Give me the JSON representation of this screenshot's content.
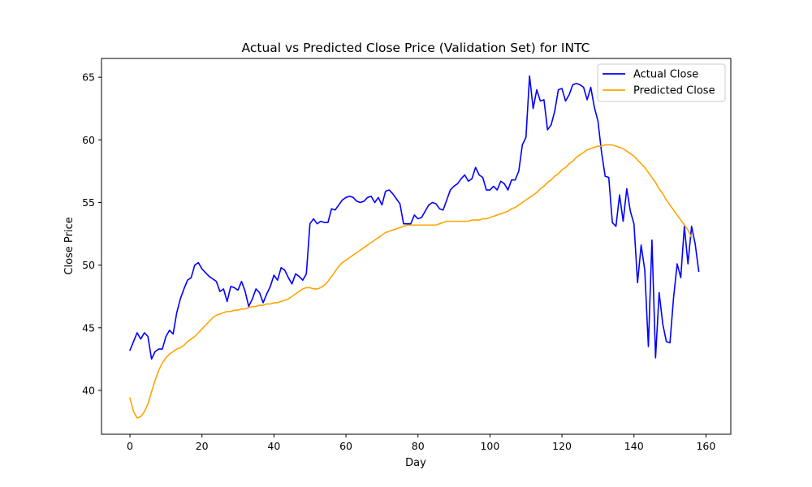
{
  "chart_data": {
    "type": "line",
    "title": "Actual vs Predicted Close Price (Validation Set) for INTC",
    "xlabel": "Day",
    "ylabel": "Close Price",
    "xlim": [
      -7.9,
      166.9
    ],
    "ylim": [
      36.5,
      66.5
    ],
    "xticks": [
      0,
      20,
      40,
      60,
      80,
      100,
      120,
      140,
      160
    ],
    "yticks": [
      40,
      45,
      50,
      55,
      60,
      65
    ],
    "grid": false,
    "legend_position": "top-right",
    "series": [
      {
        "name": "Actual Close",
        "color": "#0000ff",
        "values": [
          43.2,
          43.9,
          44.6,
          44.1,
          44.6,
          44.3,
          42.5,
          43.1,
          43.3,
          43.3,
          44.3,
          44.8,
          44.5,
          46.2,
          47.3,
          48.1,
          48.8,
          49.0,
          50.0,
          50.2,
          49.7,
          49.4,
          49.1,
          48.9,
          48.7,
          47.9,
          48.1,
          47.1,
          48.3,
          48.2,
          48.0,
          48.7,
          47.9,
          46.7,
          47.3,
          48.1,
          47.8,
          47.0,
          47.7,
          48.3,
          49.2,
          48.8,
          49.8,
          49.6,
          49.0,
          48.5,
          49.3,
          49.1,
          48.8,
          49.3,
          53.3,
          53.7,
          53.3,
          53.5,
          53.4,
          53.4,
          54.5,
          54.4,
          54.8,
          55.2,
          55.4,
          55.5,
          55.4,
          55.1,
          55.0,
          55.1,
          55.4,
          55.5,
          55.0,
          55.4,
          54.8,
          55.9,
          56.0,
          55.7,
          55.3,
          54.9,
          53.3,
          53.3,
          53.3,
          54.0,
          53.7,
          53.8,
          54.3,
          54.8,
          55.0,
          54.9,
          54.5,
          54.4,
          55.2,
          56.0,
          56.3,
          56.5,
          56.9,
          57.2,
          56.7,
          56.9,
          57.8,
          57.2,
          57.0,
          56.0,
          56.0,
          56.3,
          56.0,
          56.7,
          56.5,
          56.0,
          56.8,
          56.8,
          57.5,
          59.6,
          60.2,
          65.1,
          62.5,
          64.0,
          63.1,
          63.2,
          60.8,
          61.2,
          62.3,
          64.0,
          64.1,
          63.1,
          63.6,
          64.4,
          64.5,
          64.4,
          64.2,
          63.2,
          64.2,
          62.6,
          61.5,
          59.0,
          57.1,
          57.0,
          53.4,
          53.1,
          55.6,
          53.5,
          56.1,
          54.3,
          53.3,
          48.6,
          51.6,
          49.6,
          43.5,
          52.0,
          42.6,
          47.8,
          45.3,
          43.9,
          43.8,
          47.4,
          50.1,
          49.0,
          53.1,
          50.1,
          53.1,
          51.7,
          49.5
        ]
      },
      {
        "name": "Predicted Close",
        "color": "#ffa500",
        "values": [
          39.4,
          38.3,
          37.8,
          37.9,
          38.3,
          38.9,
          39.9,
          40.8,
          41.6,
          42.2,
          42.6,
          42.9,
          43.1,
          43.3,
          43.4,
          43.6,
          43.9,
          44.1,
          44.3,
          44.6,
          44.9,
          45.2,
          45.5,
          45.8,
          46.0,
          46.1,
          46.2,
          46.3,
          46.3,
          46.4,
          46.4,
          46.5,
          46.5,
          46.6,
          46.7,
          46.7,
          46.8,
          46.8,
          46.9,
          46.9,
          47.0,
          47.0,
          47.1,
          47.2,
          47.3,
          47.5,
          47.7,
          47.9,
          48.1,
          48.2,
          48.2,
          48.1,
          48.1,
          48.2,
          48.4,
          48.7,
          49.1,
          49.5,
          49.9,
          50.2,
          50.4,
          50.6,
          50.8,
          51.0,
          51.2,
          51.4,
          51.6,
          51.8,
          52.0,
          52.2,
          52.4,
          52.6,
          52.7,
          52.8,
          52.9,
          53.0,
          53.1,
          53.2,
          53.2,
          53.2,
          53.2,
          53.2,
          53.2,
          53.2,
          53.2,
          53.2,
          53.3,
          53.4,
          53.5,
          53.5,
          53.5,
          53.5,
          53.5,
          53.5,
          53.5,
          53.6,
          53.6,
          53.6,
          53.7,
          53.7,
          53.8,
          53.9,
          54.0,
          54.1,
          54.2,
          54.3,
          54.5,
          54.6,
          54.8,
          55.0,
          55.2,
          55.4,
          55.6,
          55.8,
          56.1,
          56.3,
          56.6,
          56.8,
          57.1,
          57.3,
          57.6,
          57.8,
          58.1,
          58.3,
          58.6,
          58.8,
          59.0,
          59.2,
          59.3,
          59.4,
          59.5,
          59.5,
          59.6,
          59.6,
          59.6,
          59.5,
          59.4,
          59.3,
          59.1,
          58.9,
          58.7,
          58.4,
          58.1,
          57.8,
          57.4,
          57.0,
          56.6,
          56.1,
          55.7,
          55.2,
          54.8,
          54.4,
          54.0,
          53.6,
          53.2,
          52.8,
          52.2
        ]
      }
    ]
  }
}
